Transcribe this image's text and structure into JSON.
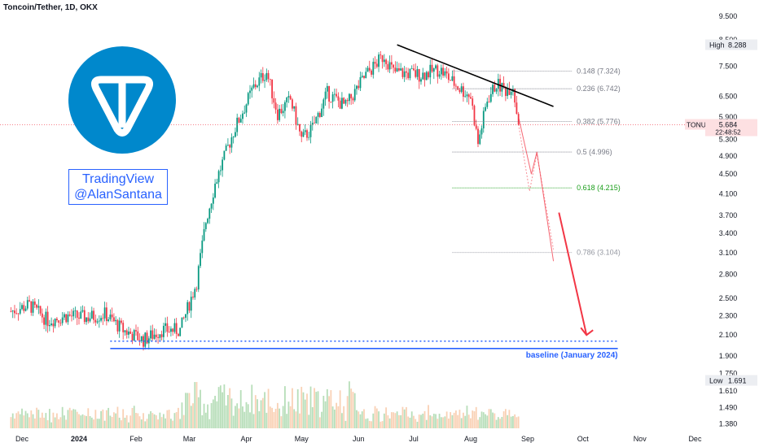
{
  "header": {
    "symbol_title": "Toncoin/Tether, 1D, OKX"
  },
  "watermark": {
    "line1": "TradingView",
    "line2": "@AlanSantana"
  },
  "logo": {
    "icon": "toncoin-logo-icon",
    "color": "#0088cc"
  },
  "colors": {
    "up": "#089981",
    "down": "#f23645",
    "projection": "#f23645",
    "fib_green": "#1b9e1b",
    "baseline": "#2962ff",
    "trendline": "#000000"
  },
  "chart_data": {
    "type": "candlestick",
    "symbol": "TONUSDT",
    "timeframe": "1D",
    "exchange": "OKX",
    "price_scale": "log",
    "y_ticks": [
      "9.500",
      "8.500",
      "7.500",
      "6.500",
      "5.900",
      "5.300",
      "4.900",
      "4.500",
      "4.100",
      "3.700",
      "3.400",
      "3.100",
      "2.800",
      "2.500",
      "2.300",
      "2.100",
      "1.900",
      "1.750",
      "1.610",
      "1.490",
      "1.380"
    ],
    "x_ticks": [
      "Dec",
      "2024",
      "Feb",
      "Mar",
      "Apr",
      "May",
      "Jun",
      "Jul",
      "Aug",
      "Sep",
      "Oct",
      "Nov",
      "Dec"
    ],
    "ylim": [
      1.35,
      9.8
    ],
    "close_path": [
      {
        "date": "2023-11-25",
        "price": 2.35
      },
      {
        "date": "2023-12-05",
        "price": 2.42
      },
      {
        "date": "2023-12-15",
        "price": 2.25
      },
      {
        "date": "2023-12-25",
        "price": 2.3
      },
      {
        "date": "2024-01-05",
        "price": 2.28
      },
      {
        "date": "2024-01-15",
        "price": 2.32
      },
      {
        "date": "2024-01-25",
        "price": 2.15
      },
      {
        "date": "2024-02-05",
        "price": 2.05
      },
      {
        "date": "2024-02-15",
        "price": 2.15
      },
      {
        "date": "2024-02-25",
        "price": 2.15
      },
      {
        "date": "2024-03-05",
        "price": 2.7
      },
      {
        "date": "2024-03-10",
        "price": 3.6
      },
      {
        "date": "2024-03-15",
        "price": 4.3
      },
      {
        "date": "2024-03-25",
        "price": 5.5
      },
      {
        "date": "2024-04-05",
        "price": 6.8
      },
      {
        "date": "2024-04-12",
        "price": 7.3
      },
      {
        "date": "2024-04-18",
        "price": 6.0
      },
      {
        "date": "2024-04-25",
        "price": 6.4
      },
      {
        "date": "2024-05-01",
        "price": 5.3
      },
      {
        "date": "2024-05-07",
        "price": 5.6
      },
      {
        "date": "2024-05-15",
        "price": 6.6
      },
      {
        "date": "2024-05-25",
        "price": 6.2
      },
      {
        "date": "2024-06-05",
        "price": 7.2
      },
      {
        "date": "2024-06-15",
        "price": 7.9
      },
      {
        "date": "2024-06-20",
        "price": 7.3
      },
      {
        "date": "2024-07-05",
        "price": 7.2
      },
      {
        "date": "2024-07-15",
        "price": 7.4
      },
      {
        "date": "2024-07-25",
        "price": 6.8
      },
      {
        "date": "2024-08-01",
        "price": 6.5
      },
      {
        "date": "2024-08-05",
        "price": 5.2
      },
      {
        "date": "2024-08-10",
        "price": 6.4
      },
      {
        "date": "2024-08-15",
        "price": 6.9
      },
      {
        "date": "2024-08-20",
        "price": 6.7
      },
      {
        "date": "2024-08-24",
        "price": 6.85
      },
      {
        "date": "2024-08-27",
        "price": 5.684
      }
    ],
    "high": {
      "label": "High",
      "value": "8.288"
    },
    "low": {
      "label": "Low",
      "value": "1.691"
    },
    "current": {
      "symbol": "TONUSDT",
      "value": "5.684",
      "countdown": "22:48:52",
      "price": 5.684
    },
    "fib_levels": [
      {
        "ratio": "0.148",
        "value": 7.324,
        "label": "0.148 (7.324)",
        "color": "#787b86"
      },
      {
        "ratio": "0.236",
        "value": 6.742,
        "label": "0.236 (6.742)",
        "color": "#787b86"
      },
      {
        "ratio": "0.382",
        "value": 5.776,
        "label": "0.382 (5.776)",
        "color": "#787b86"
      },
      {
        "ratio": "0.5",
        "value": 4.996,
        "label": "0.5 (4.996)",
        "color": "#787b86"
      },
      {
        "ratio": "0.618",
        "value": 4.215,
        "label": "0.618 (4.215)",
        "color": "#1b9e1b"
      },
      {
        "ratio": "0.786",
        "value": 3.104,
        "label": "0.786 (3.104)",
        "color": "#9598a1"
      }
    ],
    "trendline": [
      {
        "date": "2024-06-22",
        "price": 8.3
      },
      {
        "date": "2024-09-15",
        "price": 6.2
      }
    ],
    "baseline": {
      "label": "baseline (January 2024)",
      "price": 1.97,
      "dotted_price": 2.04,
      "start": "2024-01-18",
      "end": "2024-10-20"
    },
    "projections": [
      {
        "style": "solid",
        "points": [
          {
            "date": "2024-08-27",
            "price": 5.9
          },
          {
            "date": "2024-09-03",
            "price": 4.5
          },
          {
            "date": "2024-09-06",
            "price": 5.0
          },
          {
            "date": "2024-09-15",
            "price": 2.98
          }
        ]
      },
      {
        "style": "dotted",
        "points": [
          {
            "date": "2024-08-27",
            "price": 5.7
          },
          {
            "date": "2024-09-02",
            "price": 4.15
          },
          {
            "date": "2024-09-06",
            "price": 4.95
          },
          {
            "date": "2024-09-15",
            "price": 3.15
          }
        ]
      }
    ],
    "forecast_arrow": {
      "from": {
        "date": "2024-09-18",
        "price": 3.75
      },
      "to": {
        "date": "2024-10-03",
        "price": 2.1
      }
    }
  }
}
